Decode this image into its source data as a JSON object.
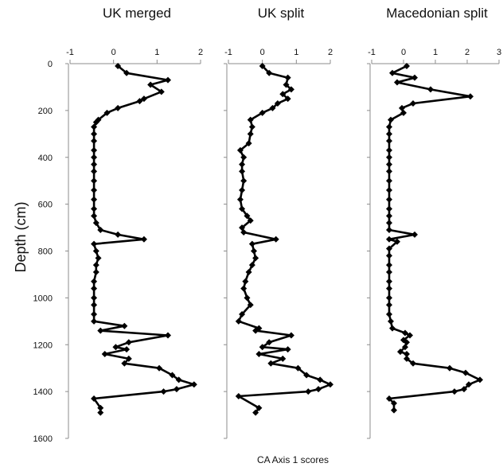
{
  "chart_data": {
    "type": "line",
    "ylabel": "Depth (cm)",
    "xlabel": "CA Axis 1 scores",
    "ylim": [
      0,
      1600
    ],
    "y_ticks": [
      "0",
      "200",
      "400",
      "600",
      "800",
      "1000",
      "1200",
      "1400",
      "1600"
    ],
    "y_reversed": true,
    "grid": false,
    "series_color": "#000000",
    "panels": [
      {
        "title": "UK merged",
        "xlim": [
          -1,
          2
        ],
        "x_ticks": [
          "-1",
          "0",
          "1",
          "2"
        ],
        "points": [
          {
            "x": 0.1,
            "y": 10
          },
          {
            "x": 0.3,
            "y": 40
          },
          {
            "x": 1.25,
            "y": 70
          },
          {
            "x": 0.85,
            "y": 90
          },
          {
            "x": 1.1,
            "y": 120
          },
          {
            "x": 0.7,
            "y": 150
          },
          {
            "x": 0.6,
            "y": 160
          },
          {
            "x": 0.1,
            "y": 190
          },
          {
            "x": -0.15,
            "y": 210
          },
          {
            "x": -0.35,
            "y": 240
          },
          {
            "x": -0.4,
            "y": 250
          },
          {
            "x": -0.45,
            "y": 270
          },
          {
            "x": -0.45,
            "y": 300
          },
          {
            "x": -0.45,
            "y": 330
          },
          {
            "x": -0.45,
            "y": 370
          },
          {
            "x": -0.45,
            "y": 400
          },
          {
            "x": -0.45,
            "y": 430
          },
          {
            "x": -0.45,
            "y": 460
          },
          {
            "x": -0.45,
            "y": 500
          },
          {
            "x": -0.45,
            "y": 540
          },
          {
            "x": -0.45,
            "y": 580
          },
          {
            "x": -0.45,
            "y": 620
          },
          {
            "x": -0.45,
            "y": 650
          },
          {
            "x": -0.4,
            "y": 680
          },
          {
            "x": -0.3,
            "y": 710
          },
          {
            "x": 0.1,
            "y": 730
          },
          {
            "x": 0.7,
            "y": 750
          },
          {
            "x": -0.45,
            "y": 770
          },
          {
            "x": -0.4,
            "y": 800
          },
          {
            "x": -0.35,
            "y": 830
          },
          {
            "x": -0.4,
            "y": 860
          },
          {
            "x": -0.4,
            "y": 890
          },
          {
            "x": -0.45,
            "y": 930
          },
          {
            "x": -0.45,
            "y": 960
          },
          {
            "x": -0.45,
            "y": 1000
          },
          {
            "x": -0.45,
            "y": 1030
          },
          {
            "x": -0.45,
            "y": 1070
          },
          {
            "x": -0.45,
            "y": 1100
          },
          {
            "x": 0.25,
            "y": 1120
          },
          {
            "x": -0.3,
            "y": 1140
          },
          {
            "x": 1.25,
            "y": 1160
          },
          {
            "x": 0.35,
            "y": 1190
          },
          {
            "x": 0.05,
            "y": 1210
          },
          {
            "x": 0.3,
            "y": 1220
          },
          {
            "x": -0.2,
            "y": 1240
          },
          {
            "x": 0.35,
            "y": 1260
          },
          {
            "x": 0.25,
            "y": 1280
          },
          {
            "x": 1.05,
            "y": 1300
          },
          {
            "x": 1.35,
            "y": 1330
          },
          {
            "x": 1.5,
            "y": 1350
          },
          {
            "x": 1.85,
            "y": 1370
          },
          {
            "x": 1.45,
            "y": 1390
          },
          {
            "x": 1.15,
            "y": 1400
          },
          {
            "x": -0.45,
            "y": 1430
          },
          {
            "x": -0.3,
            "y": 1470
          },
          {
            "x": -0.3,
            "y": 1490
          }
        ]
      },
      {
        "title": "UK split",
        "xlim": [
          -1,
          2
        ],
        "x_ticks": [
          "-1",
          "0",
          "1",
          "2"
        ],
        "points": [
          {
            "x": 0.0,
            "y": 10
          },
          {
            "x": 0.2,
            "y": 40
          },
          {
            "x": 0.75,
            "y": 60
          },
          {
            "x": 0.7,
            "y": 90
          },
          {
            "x": 0.85,
            "y": 110
          },
          {
            "x": 0.6,
            "y": 130
          },
          {
            "x": 0.75,
            "y": 150
          },
          {
            "x": 0.45,
            "y": 170
          },
          {
            "x": 0.3,
            "y": 190
          },
          {
            "x": 0.0,
            "y": 210
          },
          {
            "x": -0.35,
            "y": 240
          },
          {
            "x": -0.3,
            "y": 270
          },
          {
            "x": -0.35,
            "y": 300
          },
          {
            "x": -0.4,
            "y": 340
          },
          {
            "x": -0.65,
            "y": 370
          },
          {
            "x": -0.55,
            "y": 400
          },
          {
            "x": -0.6,
            "y": 430
          },
          {
            "x": -0.6,
            "y": 460
          },
          {
            "x": -0.55,
            "y": 500
          },
          {
            "x": -0.6,
            "y": 540
          },
          {
            "x": -0.65,
            "y": 580
          },
          {
            "x": -0.6,
            "y": 620
          },
          {
            "x": -0.45,
            "y": 650
          },
          {
            "x": -0.35,
            "y": 670
          },
          {
            "x": -0.6,
            "y": 700
          },
          {
            "x": -0.55,
            "y": 720
          },
          {
            "x": 0.4,
            "y": 750
          },
          {
            "x": -0.3,
            "y": 770
          },
          {
            "x": -0.25,
            "y": 800
          },
          {
            "x": -0.2,
            "y": 830
          },
          {
            "x": -0.3,
            "y": 860
          },
          {
            "x": -0.4,
            "y": 890
          },
          {
            "x": -0.5,
            "y": 930
          },
          {
            "x": -0.55,
            "y": 960
          },
          {
            "x": -0.45,
            "y": 1000
          },
          {
            "x": -0.35,
            "y": 1030
          },
          {
            "x": -0.6,
            "y": 1070
          },
          {
            "x": -0.7,
            "y": 1100
          },
          {
            "x": -0.1,
            "y": 1130
          },
          {
            "x": -0.2,
            "y": 1140
          },
          {
            "x": 0.85,
            "y": 1160
          },
          {
            "x": 0.2,
            "y": 1190
          },
          {
            "x": 0.0,
            "y": 1210
          },
          {
            "x": 0.75,
            "y": 1220
          },
          {
            "x": -0.1,
            "y": 1240
          },
          {
            "x": 0.6,
            "y": 1260
          },
          {
            "x": 0.25,
            "y": 1280
          },
          {
            "x": 1.05,
            "y": 1300
          },
          {
            "x": 1.3,
            "y": 1330
          },
          {
            "x": 1.7,
            "y": 1350
          },
          {
            "x": 2.0,
            "y": 1370
          },
          {
            "x": 1.65,
            "y": 1390
          },
          {
            "x": 1.35,
            "y": 1400
          },
          {
            "x": -0.7,
            "y": 1420
          },
          {
            "x": -0.1,
            "y": 1470
          },
          {
            "x": -0.2,
            "y": 1490
          }
        ]
      },
      {
        "title": "Macedonian split",
        "xlim": [
          -1,
          3
        ],
        "x_ticks": [
          "-1",
          "0",
          "1",
          "2",
          "3"
        ],
        "points": [
          {
            "x": 0.1,
            "y": 10
          },
          {
            "x": -0.35,
            "y": 40
          },
          {
            "x": 0.35,
            "y": 60
          },
          {
            "x": -0.2,
            "y": 80
          },
          {
            "x": 0.85,
            "y": 110
          },
          {
            "x": 2.1,
            "y": 140
          },
          {
            "x": 0.3,
            "y": 170
          },
          {
            "x": -0.05,
            "y": 190
          },
          {
            "x": 0.0,
            "y": 210
          },
          {
            "x": -0.4,
            "y": 240
          },
          {
            "x": -0.45,
            "y": 270
          },
          {
            "x": -0.45,
            "y": 300
          },
          {
            "x": -0.45,
            "y": 330
          },
          {
            "x": -0.45,
            "y": 370
          },
          {
            "x": -0.45,
            "y": 400
          },
          {
            "x": -0.45,
            "y": 430
          },
          {
            "x": -0.45,
            "y": 460
          },
          {
            "x": -0.45,
            "y": 500
          },
          {
            "x": -0.45,
            "y": 540
          },
          {
            "x": -0.45,
            "y": 580
          },
          {
            "x": -0.45,
            "y": 620
          },
          {
            "x": -0.45,
            "y": 650
          },
          {
            "x": -0.45,
            "y": 680
          },
          {
            "x": -0.45,
            "y": 710
          },
          {
            "x": 0.35,
            "y": 730
          },
          {
            "x": -0.45,
            "y": 750
          },
          {
            "x": -0.2,
            "y": 760
          },
          {
            "x": -0.45,
            "y": 790
          },
          {
            "x": -0.45,
            "y": 820
          },
          {
            "x": -0.45,
            "y": 860
          },
          {
            "x": -0.45,
            "y": 890
          },
          {
            "x": -0.45,
            "y": 930
          },
          {
            "x": -0.45,
            "y": 960
          },
          {
            "x": -0.45,
            "y": 1000
          },
          {
            "x": -0.45,
            "y": 1030
          },
          {
            "x": -0.45,
            "y": 1070
          },
          {
            "x": -0.4,
            "y": 1100
          },
          {
            "x": -0.35,
            "y": 1130
          },
          {
            "x": 0.05,
            "y": 1150
          },
          {
            "x": 0.2,
            "y": 1160
          },
          {
            "x": 0.0,
            "y": 1180
          },
          {
            "x": 0.1,
            "y": 1190
          },
          {
            "x": 0.05,
            "y": 1210
          },
          {
            "x": -0.1,
            "y": 1230
          },
          {
            "x": 0.1,
            "y": 1240
          },
          {
            "x": 0.1,
            "y": 1260
          },
          {
            "x": 0.3,
            "y": 1280
          },
          {
            "x": 1.45,
            "y": 1300
          },
          {
            "x": 1.95,
            "y": 1320
          },
          {
            "x": 2.4,
            "y": 1350
          },
          {
            "x": 2.05,
            "y": 1370
          },
          {
            "x": 1.9,
            "y": 1390
          },
          {
            "x": 1.6,
            "y": 1400
          },
          {
            "x": -0.45,
            "y": 1430
          },
          {
            "x": -0.3,
            "y": 1450
          },
          {
            "x": -0.3,
            "y": 1480
          }
        ]
      }
    ]
  }
}
